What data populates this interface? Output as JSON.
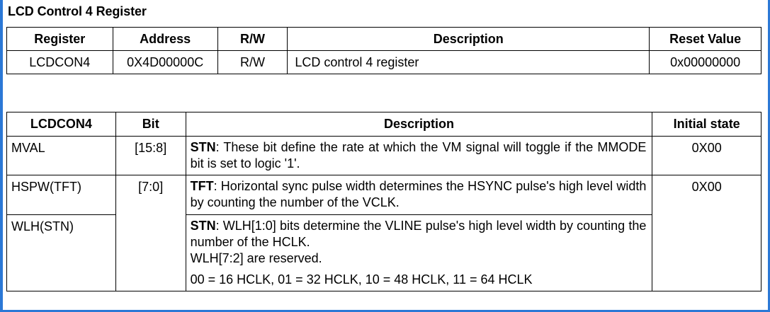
{
  "title": "LCD Control 4 Register",
  "register_table": {
    "headers": [
      "Register",
      "Address",
      "R/W",
      "Description",
      "Reset Value"
    ],
    "row": {
      "register": "LCDCON4",
      "address": "0X4D00000C",
      "rw": "R/W",
      "description": "LCD control 4 register",
      "reset_value": "0x00000000"
    }
  },
  "bitfield_table": {
    "headers": [
      "LCDCON4",
      "Bit",
      "Description",
      "Initial state"
    ],
    "rows": [
      {
        "name": "MVAL",
        "bit": "[15:8]",
        "desc_label": "STN",
        "desc_text": ": These bit define the rate at which the VM signal will toggle if the MMODE bit is set to logic '1'.",
        "initial": "0X00"
      },
      {
        "name": "HSPW(TFT)",
        "bit": "[7:0]",
        "desc_label": "TFT",
        "desc_text": ": Horizontal sync pulse width determines the HSYNC pulse's high level width by counting the number of the VCLK.",
        "initial": "0X00"
      },
      {
        "name": "WLH(STN)",
        "desc_label": "STN",
        "desc_text": ": WLH[1:0] bits determine the VLINE pulse's high level width by counting the number of the HCLK.",
        "desc_extra": "WLH[7:2] are reserved.",
        "desc_values": "00 = 16 HCLK, 01 = 32 HCLK, 10 = 48 HCLK, 11 = 64 HCLK"
      }
    ]
  }
}
